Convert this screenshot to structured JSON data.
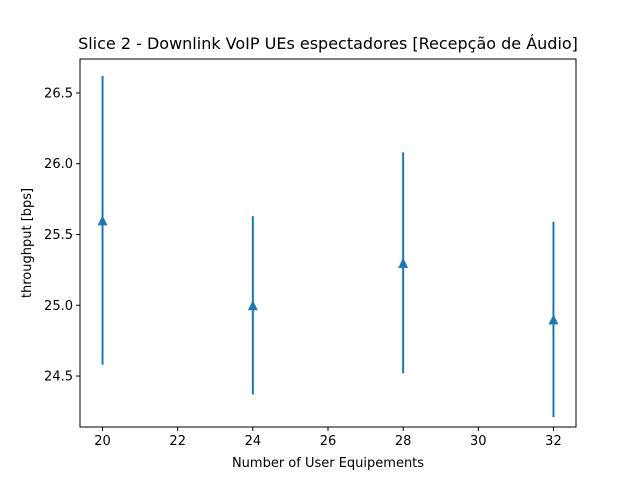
{
  "chart_data": {
    "type": "scatter",
    "title": "Slice 2 - Downlink VoIP UEs espectadores [Recepção de Áudio]",
    "xlabel": "Number of User Equipements",
    "ylabel": "throughput [bps]",
    "xlim": [
      19.4,
      32.6
    ],
    "ylim": [
      24.14,
      26.74
    ],
    "x_ticks": [
      20,
      22,
      24,
      26,
      28,
      30,
      32
    ],
    "y_ticks": [
      24.5,
      25.0,
      25.5,
      26.0,
      26.5
    ],
    "x_tick_labels": [
      "20",
      "22",
      "24",
      "26",
      "28",
      "30",
      "32"
    ],
    "y_tick_labels": [
      "24.5",
      "25.0",
      "25.5",
      "26.0",
      "26.5"
    ],
    "grid": false,
    "series": [
      {
        "marker": "triangle-up",
        "color": "#1f77b4",
        "points": [
          {
            "x": 20,
            "y": 25.6,
            "err_low": 24.58,
            "err_high": 26.62
          },
          {
            "x": 24,
            "y": 25.0,
            "err_low": 24.37,
            "err_high": 25.63
          },
          {
            "x": 28,
            "y": 25.3,
            "err_low": 24.52,
            "err_high": 26.08
          },
          {
            "x": 32,
            "y": 24.9,
            "err_low": 24.21,
            "err_high": 25.59
          }
        ]
      }
    ]
  }
}
